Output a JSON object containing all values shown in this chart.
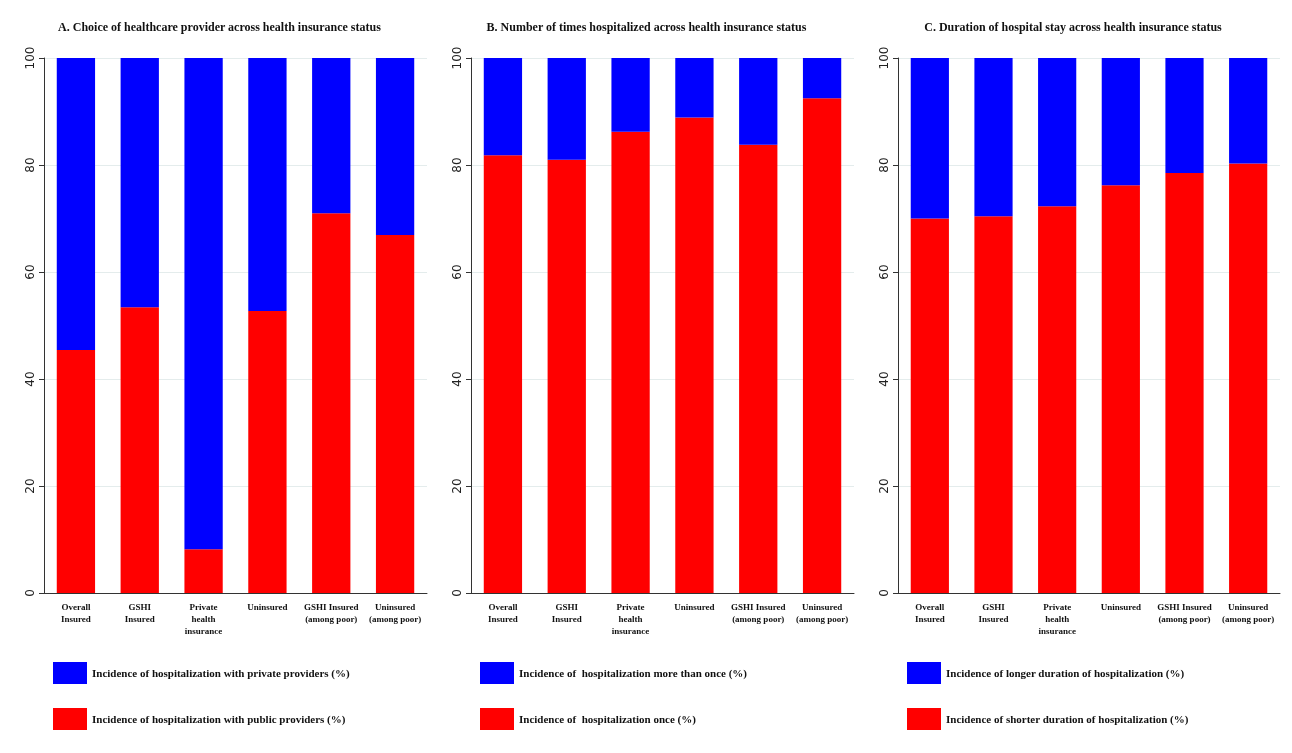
{
  "chart_data": [
    {
      "type": "bar",
      "stacked": true,
      "title": "A. Choice of healthcare provider across health insurance status",
      "categories": [
        "Overall\nInsured",
        "GSHI\nInsured",
        "Private\nhealth\ninsurance",
        "Uninsured",
        "GSHI Insured\n(among poor)",
        "Uninsured\n(among poor)"
      ],
      "ylim": [
        0,
        100
      ],
      "yticks": [
        0,
        20,
        40,
        60,
        80,
        100
      ],
      "grid": "y",
      "legend": "bottom",
      "series": [
        {
          "name": "Incidence of hospitalization with public providers (%)",
          "color": "#ff0000",
          "values": [
            45.4,
            53.4,
            8.2,
            52.7,
            71.0,
            66.9
          ]
        },
        {
          "name": "Incidence of hospitalization with private providers (%)",
          "color": "#0000ff",
          "values": [
            54.6,
            46.6,
            91.8,
            47.3,
            29.0,
            33.1
          ]
        }
      ]
    },
    {
      "type": "bar",
      "stacked": true,
      "title": "B. Number of times hospitalized across health insurance status",
      "categories": [
        "Overall\nInsured",
        "GSHI\nInsured",
        "Private\nhealth\ninsurance",
        "Uninsured",
        "GSHI Insured\n(among poor)",
        "Uninsured\n(among poor)"
      ],
      "ylim": [
        0,
        100
      ],
      "yticks": [
        0,
        20,
        40,
        60,
        80,
        100
      ],
      "grid": "y",
      "legend": "bottom",
      "series": [
        {
          "name": "Incidence of  hospitalization once (%)",
          "color": "#ff0000",
          "values": [
            81.8,
            81.0,
            86.2,
            88.9,
            83.8,
            92.5
          ]
        },
        {
          "name": "Incidence of  hospitalization more than once (%)",
          "color": "#0000ff",
          "values": [
            18.2,
            19.0,
            13.8,
            11.1,
            16.2,
            7.5
          ]
        }
      ]
    },
    {
      "type": "bar",
      "stacked": true,
      "title": "C. Duration of hospital stay across health insurance status",
      "categories": [
        "Overall\nInsured",
        "GSHI\nInsured",
        "Private\nhealth\ninsurance",
        "Uninsured",
        "GSHI Insured\n(among poor)",
        "Uninsured\n(among poor)"
      ],
      "ylim": [
        0,
        100
      ],
      "yticks": [
        0,
        20,
        40,
        60,
        80,
        100
      ],
      "grid": "y",
      "legend": "bottom",
      "series": [
        {
          "name": "Incidence of shorter duration of hospitalization (%)",
          "color": "#ff0000",
          "values": [
            70.0,
            70.4,
            72.3,
            76.2,
            78.5,
            80.3
          ]
        },
        {
          "name": "Incidence of longer duration of hospitalization (%)",
          "color": "#0000ff",
          "values": [
            30.0,
            29.6,
            27.7,
            23.8,
            21.5,
            19.7
          ]
        }
      ]
    }
  ]
}
